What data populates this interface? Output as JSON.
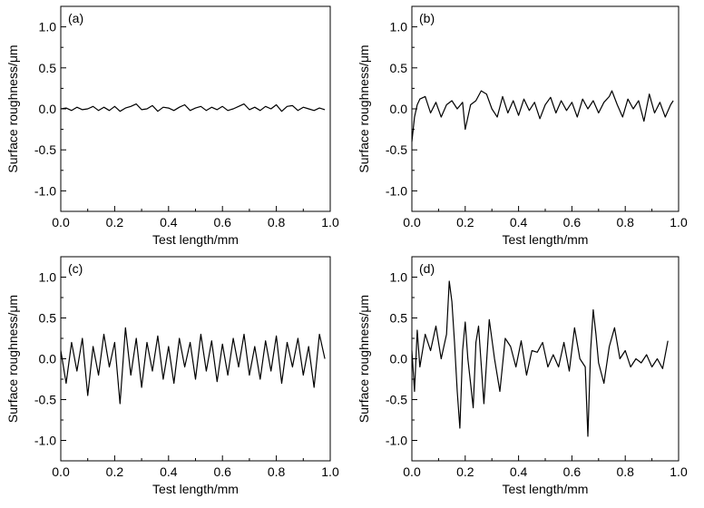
{
  "chart_data": [
    {
      "type": "line",
      "panel_label": "(a)",
      "xlabel": "Test length/mm",
      "ylabel": "Surface roughness/μm",
      "xlim": [
        0.0,
        1.0
      ],
      "ylim": [
        -1.25,
        1.25
      ],
      "xticks": [
        "0.0",
        "0.2",
        "0.4",
        "0.6",
        "0.8",
        "1.0"
      ],
      "yticks": [
        "-1.0",
        "-0.5",
        "0.0",
        "0.5",
        "1.0"
      ],
      "grid": false,
      "series": [
        {
          "x": [
            0.0,
            0.02,
            0.04,
            0.06,
            0.08,
            0.1,
            0.12,
            0.14,
            0.16,
            0.18,
            0.2,
            0.22,
            0.24,
            0.26,
            0.28,
            0.3,
            0.32,
            0.34,
            0.36,
            0.38,
            0.4,
            0.42,
            0.44,
            0.46,
            0.48,
            0.5,
            0.52,
            0.54,
            0.56,
            0.58,
            0.6,
            0.62,
            0.64,
            0.66,
            0.68,
            0.7,
            0.72,
            0.74,
            0.76,
            0.78,
            0.8,
            0.82,
            0.84,
            0.86,
            0.88,
            0.9,
            0.92,
            0.94,
            0.96,
            0.98
          ],
          "y": [
            0.0,
            0.01,
            -0.02,
            0.02,
            -0.01,
            0.0,
            0.03,
            -0.02,
            0.02,
            -0.02,
            0.03,
            -0.03,
            0.01,
            0.03,
            0.06,
            -0.01,
            0.0,
            0.04,
            -0.03,
            0.02,
            0.01,
            -0.02,
            0.02,
            0.05,
            -0.02,
            0.01,
            0.03,
            -0.02,
            0.02,
            -0.01,
            0.03,
            -0.02,
            0.0,
            0.03,
            0.06,
            -0.01,
            0.02,
            -0.02,
            0.03,
            0.0,
            0.05,
            -0.03,
            0.03,
            0.04,
            -0.02,
            0.02,
            0.0,
            -0.02,
            0.01,
            -0.01
          ]
        }
      ]
    },
    {
      "type": "line",
      "panel_label": "(b)",
      "xlabel": "Test length/mm",
      "ylabel": "Surface roughness/μm",
      "xlim": [
        0.0,
        1.0
      ],
      "ylim": [
        -1.25,
        1.25
      ],
      "xticks": [
        "0.0",
        "0.2",
        "0.4",
        "0.6",
        "0.8",
        "1.0"
      ],
      "yticks": [
        "-1.0",
        "-0.5",
        "0.0",
        "0.5",
        "1.0"
      ],
      "grid": false,
      "series": [
        {
          "x": [
            0.0,
            0.01,
            0.02,
            0.03,
            0.05,
            0.07,
            0.09,
            0.11,
            0.13,
            0.15,
            0.17,
            0.19,
            0.2,
            0.22,
            0.24,
            0.26,
            0.28,
            0.3,
            0.32,
            0.34,
            0.36,
            0.38,
            0.4,
            0.42,
            0.44,
            0.46,
            0.48,
            0.5,
            0.52,
            0.54,
            0.56,
            0.58,
            0.6,
            0.62,
            0.64,
            0.66,
            0.68,
            0.7,
            0.72,
            0.74,
            0.75,
            0.77,
            0.79,
            0.81,
            0.83,
            0.85,
            0.87,
            0.89,
            0.91,
            0.93,
            0.95,
            0.97,
            0.98
          ],
          "y": [
            -0.4,
            -0.1,
            0.05,
            0.12,
            0.15,
            -0.05,
            0.08,
            -0.1,
            0.05,
            0.1,
            0.0,
            0.08,
            -0.25,
            0.05,
            0.1,
            0.22,
            0.18,
            0.0,
            -0.1,
            0.15,
            -0.05,
            0.1,
            -0.08,
            0.12,
            -0.02,
            0.08,
            -0.12,
            0.05,
            0.14,
            -0.05,
            0.1,
            -0.02,
            0.08,
            -0.1,
            0.12,
            0.0,
            0.1,
            -0.05,
            0.08,
            0.15,
            0.22,
            0.05,
            -0.1,
            0.12,
            0.0,
            0.1,
            -0.15,
            0.18,
            -0.05,
            0.08,
            -0.1,
            0.05,
            0.1
          ]
        }
      ]
    },
    {
      "type": "line",
      "panel_label": "(c)",
      "xlabel": "Test length/mm",
      "ylabel": "Surface roughness/μm",
      "xlim": [
        0.0,
        1.0
      ],
      "ylim": [
        -1.25,
        1.25
      ],
      "xticks": [
        "0.0",
        "0.2",
        "0.4",
        "0.6",
        "0.8",
        "1.0"
      ],
      "yticks": [
        "-1.0",
        "-0.5",
        "0.0",
        "0.5",
        "1.0"
      ],
      "grid": false,
      "series": [
        {
          "x": [
            0.0,
            0.02,
            0.04,
            0.06,
            0.08,
            0.1,
            0.12,
            0.14,
            0.16,
            0.18,
            0.2,
            0.22,
            0.24,
            0.26,
            0.28,
            0.3,
            0.32,
            0.34,
            0.36,
            0.38,
            0.4,
            0.42,
            0.44,
            0.46,
            0.48,
            0.5,
            0.52,
            0.54,
            0.56,
            0.58,
            0.6,
            0.62,
            0.64,
            0.66,
            0.68,
            0.7,
            0.72,
            0.74,
            0.76,
            0.78,
            0.8,
            0.82,
            0.84,
            0.86,
            0.88,
            0.9,
            0.92,
            0.94,
            0.96,
            0.98
          ],
          "y": [
            0.1,
            -0.3,
            0.2,
            -0.15,
            0.25,
            -0.45,
            0.15,
            -0.2,
            0.3,
            -0.1,
            0.2,
            -0.55,
            0.38,
            -0.2,
            0.25,
            -0.35,
            0.2,
            -0.15,
            0.28,
            -0.25,
            0.15,
            -0.3,
            0.25,
            -0.1,
            0.2,
            -0.25,
            0.3,
            -0.15,
            0.22,
            -0.28,
            0.18,
            -0.2,
            0.25,
            -0.1,
            0.3,
            -0.2,
            0.15,
            -0.25,
            0.22,
            -0.15,
            0.28,
            -0.3,
            0.2,
            -0.1,
            0.25,
            -0.2,
            0.15,
            -0.35,
            0.3,
            0.0
          ]
        }
      ]
    },
    {
      "type": "line",
      "panel_label": "(d)",
      "xlabel": "Test length/mm",
      "ylabel": "Surface roughness/μm",
      "xlim": [
        0.0,
        1.0
      ],
      "ylim": [
        -1.25,
        1.25
      ],
      "xticks": [
        "0.0",
        "0.2",
        "0.4",
        "0.6",
        "0.8",
        "1.0"
      ],
      "yticks": [
        "-1.0",
        "-0.5",
        "0.0",
        "0.5",
        "1.0"
      ],
      "grid": false,
      "series": [
        {
          "x": [
            0.0,
            0.01,
            0.02,
            0.03,
            0.05,
            0.07,
            0.09,
            0.11,
            0.13,
            0.14,
            0.15,
            0.16,
            0.17,
            0.18,
            0.19,
            0.2,
            0.21,
            0.22,
            0.23,
            0.24,
            0.25,
            0.27,
            0.29,
            0.31,
            0.33,
            0.35,
            0.37,
            0.39,
            0.41,
            0.43,
            0.45,
            0.47,
            0.49,
            0.51,
            0.53,
            0.55,
            0.57,
            0.59,
            0.61,
            0.63,
            0.65,
            0.66,
            0.67,
            0.68,
            0.69,
            0.7,
            0.72,
            0.74,
            0.76,
            0.78,
            0.8,
            0.82,
            0.84,
            0.86,
            0.88,
            0.9,
            0.92,
            0.94,
            0.96
          ],
          "y": [
            0.1,
            -0.4,
            0.35,
            -0.1,
            0.3,
            0.1,
            0.4,
            0.0,
            0.3,
            0.95,
            0.7,
            0.2,
            -0.4,
            -0.85,
            0.1,
            0.45,
            0.0,
            -0.3,
            -0.6,
            0.2,
            0.4,
            -0.55,
            0.48,
            0.0,
            -0.4,
            0.25,
            0.15,
            -0.1,
            0.22,
            -0.2,
            0.1,
            0.08,
            0.2,
            -0.1,
            0.05,
            -0.1,
            0.2,
            -0.15,
            0.38,
            0.0,
            -0.1,
            -0.95,
            0.1,
            0.6,
            0.3,
            -0.05,
            -0.3,
            0.15,
            0.38,
            0.0,
            0.1,
            -0.1,
            0.0,
            -0.05,
            0.05,
            -0.1,
            0.0,
            -0.12,
            0.22
          ]
        }
      ]
    }
  ]
}
